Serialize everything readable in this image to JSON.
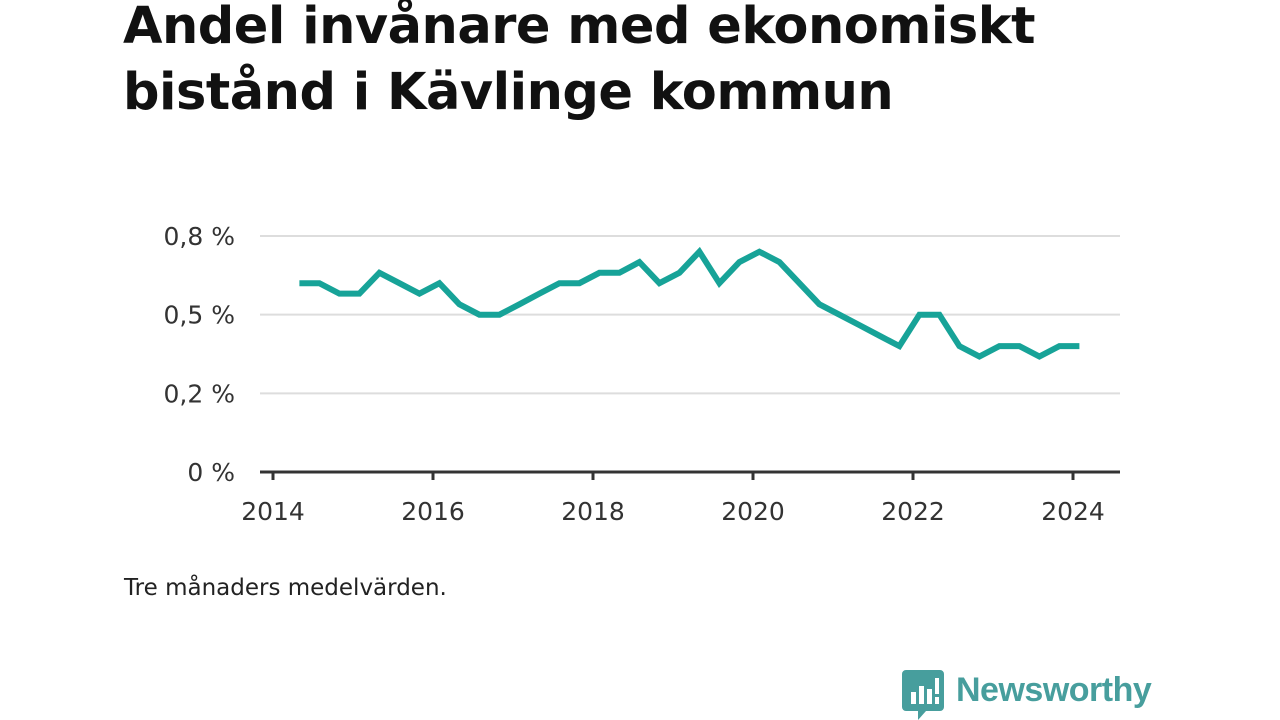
{
  "title": "Andel invånare med ekonomiskt bistånd i Kävlinge kommun",
  "note": "Tre månaders medelvärden.",
  "brand": {
    "name": "Newsworthy",
    "color": "#479e9d",
    "icon": "bar-chart-speech-bubble-icon"
  },
  "colors": {
    "line": "#17a398",
    "grid": "#dddddd",
    "axis": "#333333",
    "text": "#111111"
  },
  "chart_data": {
    "type": "line",
    "title": "Andel invånare med ekonomiskt bistånd i Kävlinge kommun",
    "xlabel": "",
    "ylabel": "",
    "x_tick_labels": [
      "2014",
      "2016",
      "2018",
      "2020",
      "2022",
      "2024"
    ],
    "x_tick_years": [
      2014,
      2016,
      2018,
      2020,
      2022,
      2024
    ],
    "y_tick_labels": [
      "0 %",
      "0,2 %",
      "0,5 %",
      "0,8 %"
    ],
    "y_tick_values": [
      0,
      0.25,
      0.5,
      0.75
    ],
    "xlim": [
      2014,
      2024.6
    ],
    "ylim": [
      0,
      0.75
    ],
    "grid": true,
    "legend": "none",
    "series": [
      {
        "x": [
          2014.33,
          2014.58,
          2014.83,
          2015.08,
          2015.33,
          2015.58,
          2015.83,
          2016.08,
          2016.33,
          2016.58,
          2016.83,
          2017.08,
          2017.33,
          2017.58,
          2017.83,
          2018.08,
          2018.33,
          2018.58,
          2018.83,
          2019.08,
          2019.33,
          2019.58,
          2019.83,
          2020.08,
          2020.33,
          2020.58,
          2020.83,
          2021.08,
          2021.33,
          2021.58,
          2021.83,
          2022.08,
          2022.33,
          2022.58,
          2022.83,
          2023.08,
          2023.33,
          2023.58,
          2023.83,
          2024.08
        ],
        "values": [
          0.6,
          0.6,
          0.567,
          0.567,
          0.633,
          0.6,
          0.567,
          0.6,
          0.533,
          0.5,
          0.5,
          0.533,
          0.567,
          0.6,
          0.6,
          0.633,
          0.633,
          0.667,
          0.6,
          0.633,
          0.7,
          0.6,
          0.667,
          0.7,
          0.667,
          0.6,
          0.533,
          0.5,
          0.467,
          0.433,
          0.4,
          0.5,
          0.5,
          0.4,
          0.367,
          0.4,
          0.4,
          0.367,
          0.4,
          0.4
        ]
      }
    ]
  }
}
